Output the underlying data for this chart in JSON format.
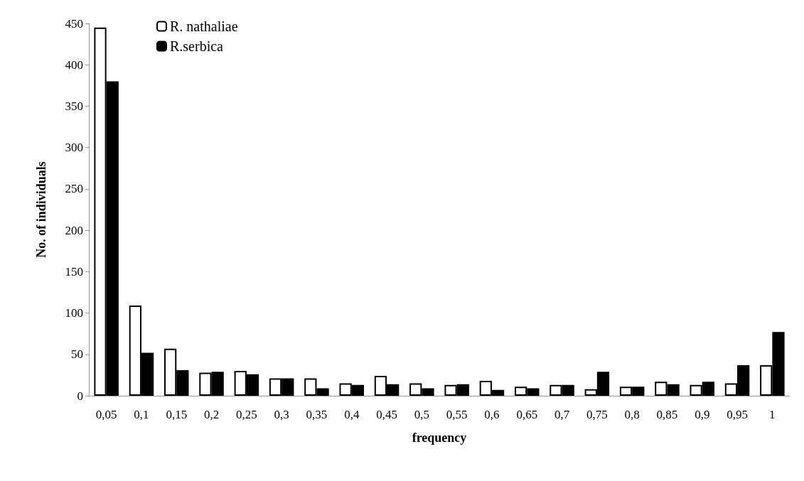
{
  "chart_data": {
    "type": "bar",
    "xlabel": "frequency",
    "ylabel": "No. of individuals",
    "categories": [
      "0,05",
      "0,1",
      "0,15",
      "0,2",
      "0,25",
      "0,3",
      "0,35",
      "0,4",
      "0,45",
      "0,5",
      "0,55",
      "0,6",
      "0,65",
      "0,7",
      "0,75",
      "0,8",
      "0,85",
      "0,9",
      "0,95",
      "1"
    ],
    "series": [
      {
        "name": "R. nathaliae",
        "color": "#ffffff",
        "values": [
          445,
          109,
          57,
          28,
          30,
          21,
          21,
          15,
          24,
          15,
          13,
          18,
          11,
          13,
          8,
          11,
          17,
          13,
          15,
          37
        ]
      },
      {
        "name": "R.serbica",
        "color": "#000000",
        "values": [
          380,
          52,
          31,
          29,
          26,
          21,
          9,
          13,
          14,
          9,
          14,
          7,
          9,
          13,
          29,
          11,
          14,
          17,
          37,
          77
        ]
      }
    ],
    "ylim": [
      0,
      450
    ],
    "yticks": [
      0,
      50,
      100,
      150,
      200,
      250,
      300,
      350,
      400,
      450
    ],
    "grid": false,
    "legend": "top left"
  }
}
